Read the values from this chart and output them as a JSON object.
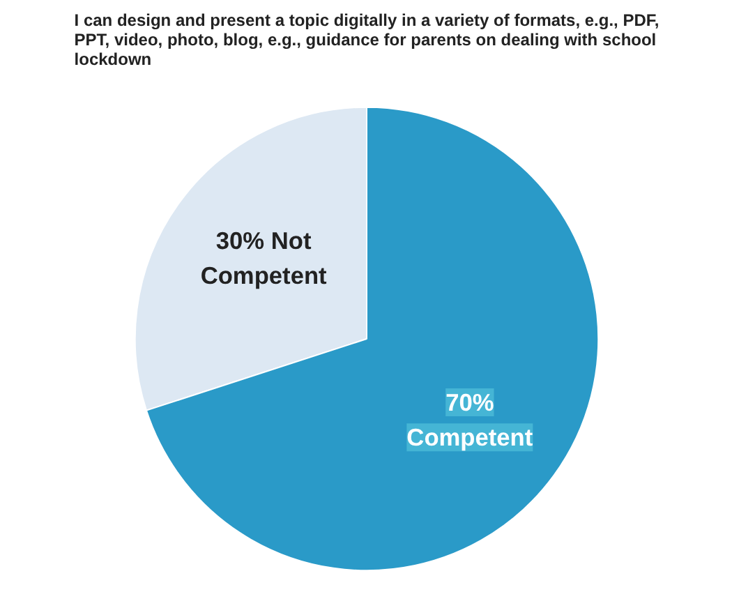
{
  "chart_data": {
    "type": "pie",
    "title": "I can design and present a topic digitally in a variety of formats, e.g., PDF, PPT, video, photo, blog, e.g., guidance for parents on dealing with school lockdown",
    "categories": [
      "30% Not Competent",
      "70% Competent"
    ],
    "values": [
      30,
      70
    ],
    "colors": [
      "#dde8f3",
      "#2a9ac8"
    ]
  }
}
